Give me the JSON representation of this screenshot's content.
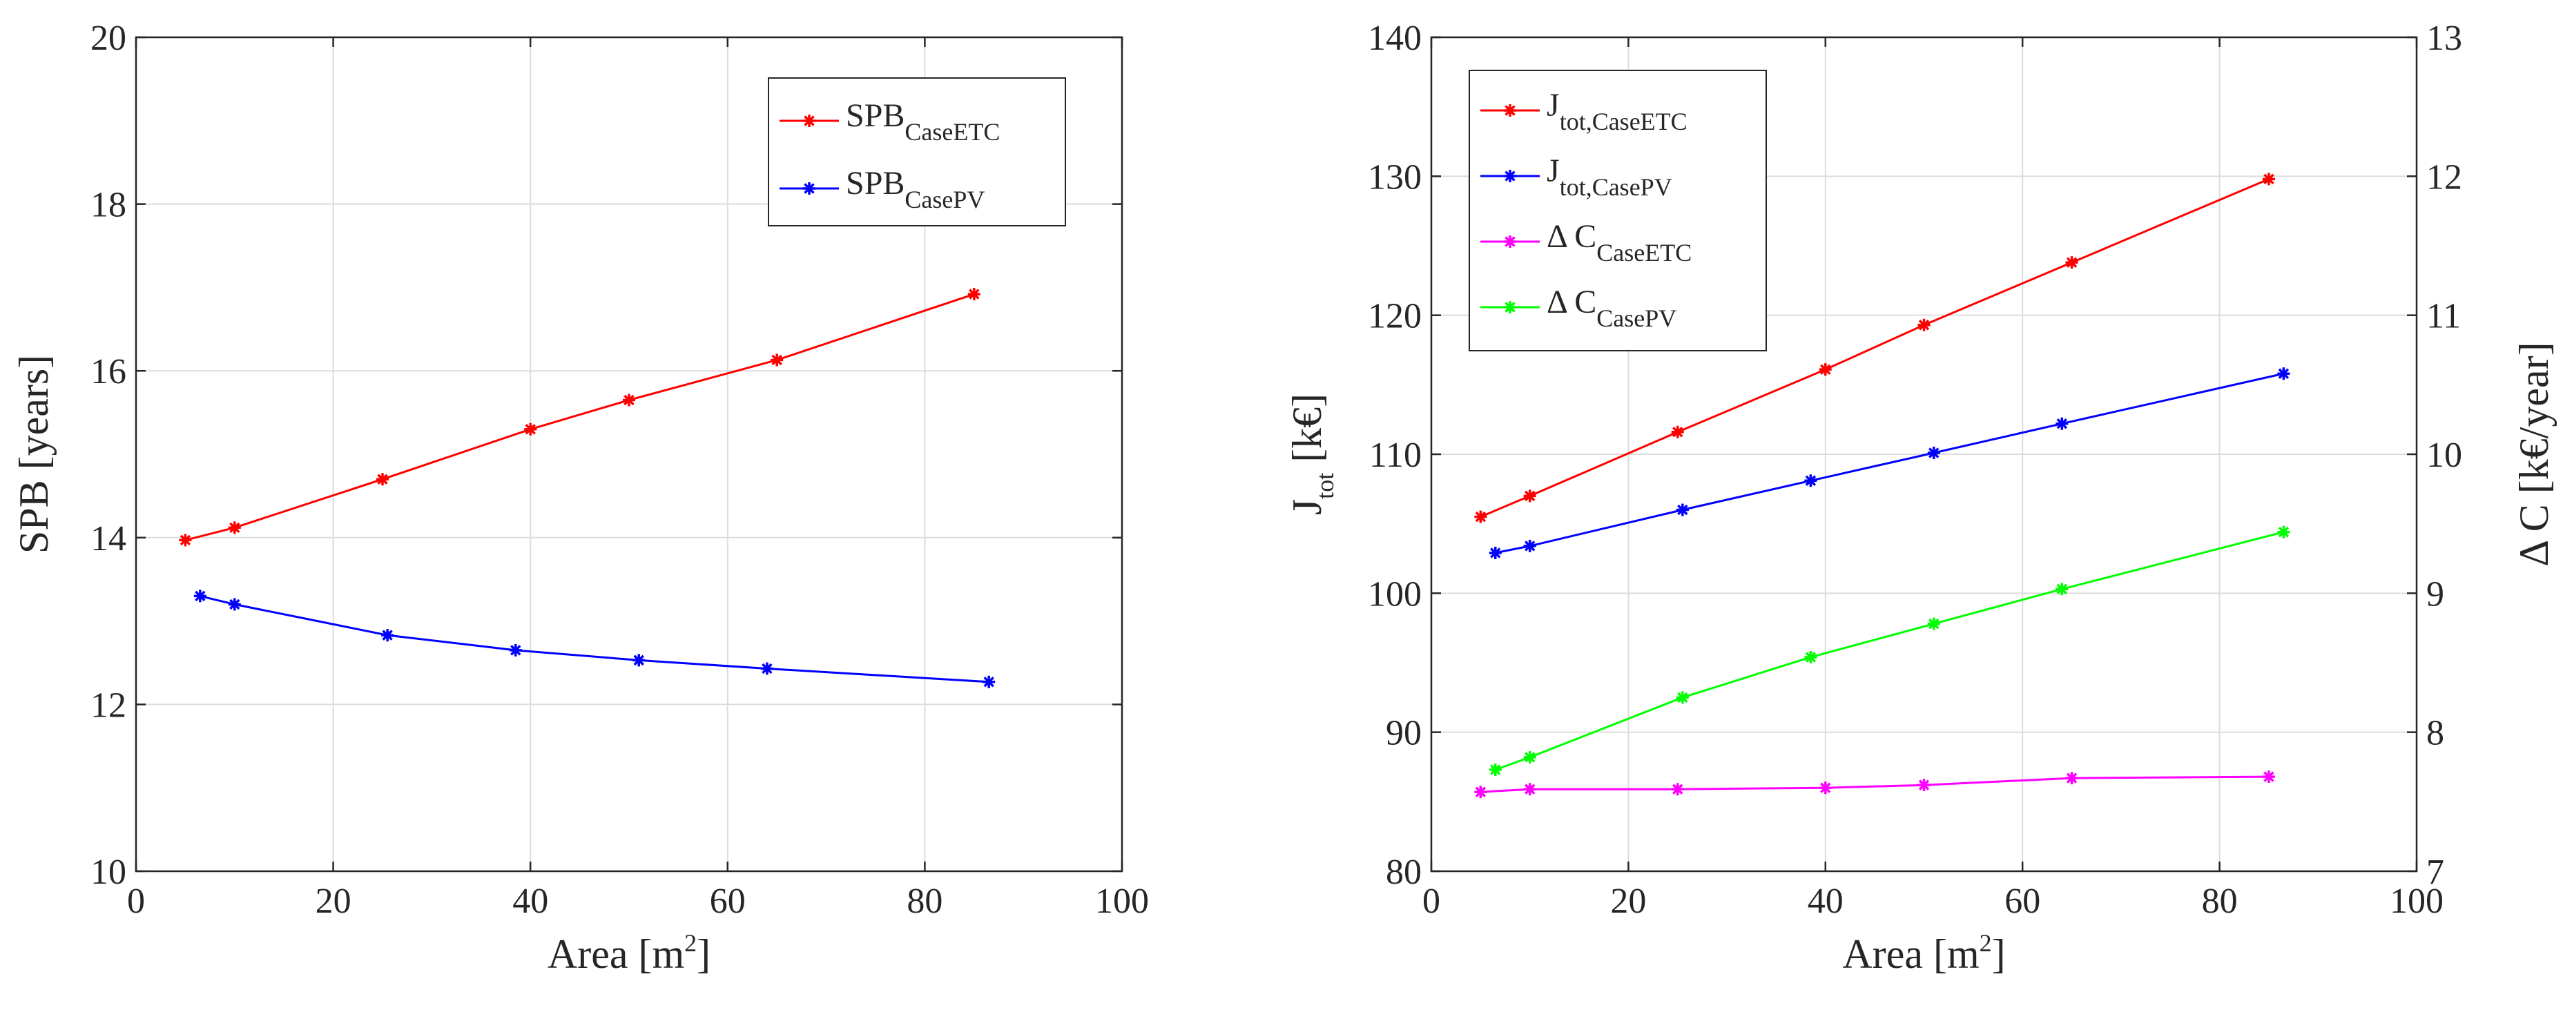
{
  "chart_data": [
    {
      "type": "line",
      "xlabel": "Area [m",
      "xlabel_sup": "2",
      "xlabel_end": "]",
      "ylabel": "SPB [years]",
      "xlim": [
        0,
        100
      ],
      "ylim": [
        10,
        20
      ],
      "xticks": [
        0,
        20,
        40,
        60,
        80,
        100
      ],
      "yticks": [
        10,
        12,
        14,
        16,
        18,
        20
      ],
      "grid": true,
      "legend_position": "top-right",
      "series": [
        {
          "name": "SPB",
          "sub": "CaseETC",
          "color": "#ff0000",
          "x": [
            5,
            10,
            25,
            40,
            50,
            65,
            85
          ],
          "y": [
            13.97,
            14.12,
            14.7,
            15.3,
            15.65,
            16.13,
            16.92
          ]
        },
        {
          "name": "SPB",
          "sub": "CasePV",
          "color": "#0000ff",
          "x": [
            6.5,
            10,
            25.5,
            38.5,
            51,
            64,
            86.5
          ],
          "y": [
            13.3,
            13.2,
            12.83,
            12.65,
            12.53,
            12.43,
            12.27
          ]
        }
      ]
    },
    {
      "type": "line",
      "xlabel": "Area [m",
      "xlabel_sup": "2",
      "xlabel_end": "]",
      "ylabel": "J",
      "ylabel_sub": "tot",
      "ylabel_end": " [k€]",
      "y2label": "Δ C [k€/year]",
      "xlim": [
        0,
        100
      ],
      "ylim": [
        80,
        140
      ],
      "y2lim": [
        7,
        13
      ],
      "xticks": [
        0,
        20,
        40,
        60,
        80,
        100
      ],
      "yticks": [
        80,
        90,
        100,
        110,
        120,
        130,
        140
      ],
      "y2ticks": [
        7,
        8,
        9,
        10,
        11,
        12,
        13
      ],
      "grid": true,
      "legend_position": "top-left",
      "series": [
        {
          "name": "J",
          "sub": "tot,CaseETC",
          "color": "#ff0000",
          "axis": "left",
          "x": [
            5,
            10,
            25,
            40,
            50,
            65,
            85
          ],
          "y": [
            105.5,
            107,
            111.6,
            116.1,
            119.3,
            123.8,
            129.8
          ]
        },
        {
          "name": "J",
          "sub": "tot,CasePV",
          "color": "#0000ff",
          "axis": "left",
          "x": [
            6.5,
            10,
            25.5,
            38.5,
            51,
            64,
            86.5
          ],
          "y": [
            102.9,
            103.4,
            106,
            108.1,
            110.1,
            112.2,
            115.8
          ]
        },
        {
          "name": "Δ C",
          "sub": "CaseETC",
          "color": "#ff00ff",
          "axis": "right",
          "x": [
            5,
            10,
            25,
            40,
            50,
            65,
            85
          ],
          "y": [
            7.57,
            7.59,
            7.59,
            7.6,
            7.62,
            7.67,
            7.68
          ]
        },
        {
          "name": "Δ C",
          "sub": "CasePV",
          "color": "#00ff00",
          "axis": "right",
          "x": [
            6.5,
            10,
            25.5,
            38.5,
            51,
            64,
            86.5
          ],
          "y": [
            7.73,
            7.82,
            8.25,
            8.54,
            8.78,
            9.03,
            9.44
          ]
        }
      ]
    }
  ]
}
